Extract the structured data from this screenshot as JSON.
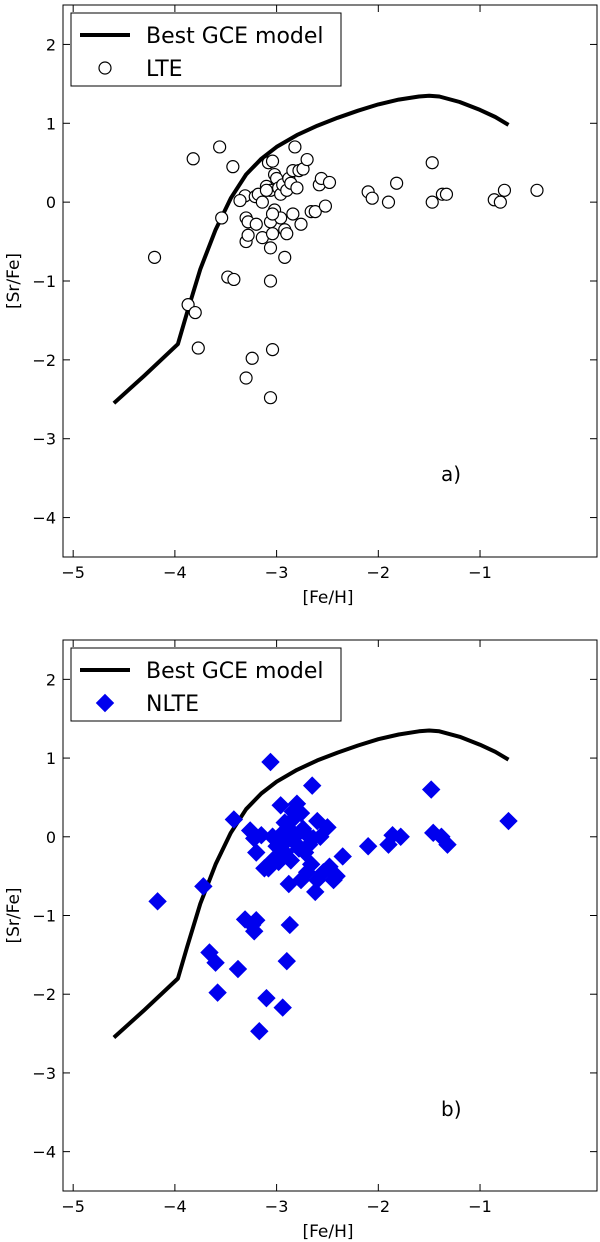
{
  "chart_data": [
    {
      "type": "scatter",
      "panel_label": "a)",
      "xlabel": "[Fe/H]",
      "ylabel": "[Sr/Fe]",
      "xlim": [
        -5.1,
        0.15
      ],
      "ylim": [
        -4.5,
        2.5
      ],
      "xticks": [
        -5,
        -4,
        -3,
        -2,
        -1
      ],
      "yticks": [
        2,
        1,
        0,
        -1,
        -2,
        -3,
        -4
      ],
      "xtick_labels": [
        "−5",
        "−4",
        "−3",
        "−2",
        "−1"
      ],
      "ytick_labels": [
        "2",
        "1",
        "0",
        "−1",
        "−2",
        "−3",
        "−4"
      ],
      "legend": {
        "position": "top-left",
        "entries": [
          "Best GCE model",
          "LTE"
        ]
      },
      "model": {
        "name": "Best GCE model",
        "color": "#000000",
        "x": [
          -4.6,
          -4.3,
          -3.97,
          -3.88,
          -3.75,
          -3.6,
          -3.45,
          -3.3,
          -3.15,
          -3.0,
          -2.8,
          -2.6,
          -2.4,
          -2.2,
          -2.0,
          -1.8,
          -1.6,
          -1.5,
          -1.4,
          -1.2,
          -1.0,
          -0.85,
          -0.72
        ],
        "y": [
          -2.55,
          -2.2,
          -1.8,
          -1.4,
          -0.85,
          -0.35,
          0.05,
          0.35,
          0.55,
          0.7,
          0.85,
          0.97,
          1.07,
          1.16,
          1.24,
          1.3,
          1.34,
          1.35,
          1.34,
          1.27,
          1.17,
          1.08,
          0.98
        ]
      },
      "series": [
        {
          "name": "LTE",
          "marker": "open-circle",
          "color": "#000000",
          "x": [
            -4.2,
            -3.82,
            -3.87,
            -3.8,
            -3.77,
            -3.43,
            -3.31,
            -3.21,
            -3.54,
            -3.48,
            -3.42,
            -3.36,
            -3.3,
            -3.28,
            -3.3,
            -3.3,
            -3.24,
            -3.18,
            -3.14,
            -3.1,
            -3.08,
            -3.06,
            -3.06,
            -3.04,
            -3.04,
            -3.02,
            -3.0,
            -2.98,
            -2.96,
            -2.94,
            -2.92,
            -2.9,
            -2.88,
            -2.86,
            -2.84,
            -2.82,
            -2.8,
            -2.78,
            -2.74,
            -2.7,
            -2.66,
            -2.62,
            -2.58,
            -2.56,
            -2.52,
            -2.48,
            -3.06,
            -3.02,
            -2.96,
            -2.9,
            -2.84,
            -2.76,
            -3.2,
            -3.14,
            -3.1,
            -3.04,
            -2.92,
            -3.56,
            -3.28,
            -3.06,
            -3.06,
            -3.04,
            -2.1,
            -2.06,
            -1.9,
            -1.82,
            -1.47,
            -1.47,
            -1.37,
            -1.33,
            -0.86,
            -0.8,
            -0.76,
            -0.44
          ],
          "y": [
            -0.7,
            0.55,
            -1.3,
            -1.4,
            -1.85,
            0.45,
            0.08,
            0.07,
            -0.2,
            -0.95,
            -0.98,
            0.02,
            -0.2,
            -0.25,
            -0.5,
            -2.23,
            -1.98,
            0.1,
            0.0,
            0.2,
            0.5,
            0.15,
            -0.25,
            0.52,
            -1.87,
            0.35,
            0.3,
            0.18,
            0.1,
            0.22,
            -0.35,
            0.15,
            0.3,
            0.24,
            0.4,
            0.7,
            0.18,
            0.4,
            0.42,
            0.54,
            -0.12,
            -0.12,
            0.22,
            0.3,
            -0.05,
            0.25,
            -1.0,
            -0.1,
            -0.2,
            -0.4,
            -0.15,
            -0.28,
            -0.28,
            -0.45,
            0.15,
            -0.15,
            -0.7,
            0.7,
            -0.42,
            -0.58,
            -2.48,
            -0.4,
            0.13,
            0.05,
            0.0,
            0.24,
            0.5,
            0.0,
            0.1,
            0.1,
            0.03,
            0.0,
            0.15,
            0.15
          ]
        }
      ]
    },
    {
      "type": "scatter",
      "panel_label": "b)",
      "xlabel": "[Fe/H]",
      "ylabel": "[Sr/Fe]",
      "xlim": [
        -5.1,
        0.15
      ],
      "ylim": [
        -4.5,
        2.5
      ],
      "xticks": [
        -5,
        -4,
        -3,
        -2,
        -1
      ],
      "yticks": [
        2,
        1,
        0,
        -1,
        -2,
        -3,
        -4
      ],
      "xtick_labels": [
        "−5",
        "−4",
        "−3",
        "−2",
        "−1"
      ],
      "ytick_labels": [
        "2",
        "1",
        "0",
        "−1",
        "−2",
        "−3",
        "−4"
      ],
      "legend": {
        "position": "top-left",
        "entries": [
          "Best GCE model",
          "NLTE"
        ]
      },
      "model": {
        "name": "Best GCE model",
        "color": "#000000",
        "x": [
          -4.6,
          -4.3,
          -3.97,
          -3.88,
          -3.75,
          -3.6,
          -3.45,
          -3.3,
          -3.15,
          -3.0,
          -2.8,
          -2.6,
          -2.4,
          -2.2,
          -2.0,
          -1.8,
          -1.6,
          -1.5,
          -1.4,
          -1.2,
          -1.0,
          -0.85,
          -0.72
        ],
        "y": [
          -2.55,
          -2.2,
          -1.8,
          -1.4,
          -0.85,
          -0.35,
          0.05,
          0.35,
          0.55,
          0.7,
          0.85,
          0.97,
          1.07,
          1.16,
          1.24,
          1.3,
          1.34,
          1.35,
          1.34,
          1.27,
          1.17,
          1.08,
          0.98
        ]
      },
      "series": [
        {
          "name": "NLTE",
          "marker": "diamond",
          "color": "#0000ee",
          "x": [
            -4.17,
            -3.72,
            -3.66,
            -3.6,
            -3.58,
            -3.38,
            -3.42,
            -3.31,
            -3.24,
            -3.22,
            -3.2,
            -3.17,
            -3.1,
            -3.06,
            -3.04,
            -2.94,
            -2.9,
            -2.87,
            -3.04,
            -3.26,
            -3.22,
            -3.2,
            -3.15,
            -3.12,
            -3.08,
            -3.04,
            -3.0,
            -2.98,
            -2.96,
            -2.94,
            -2.92,
            -2.9,
            -2.88,
            -2.86,
            -2.84,
            -2.82,
            -2.8,
            -2.78,
            -2.76,
            -2.74,
            -2.72,
            -2.7,
            -2.68,
            -2.65,
            -2.62,
            -2.6,
            -2.57,
            -2.54,
            -2.5,
            -2.48,
            -2.44,
            -2.41,
            -2.35,
            -2.96,
            -2.92,
            -2.86,
            -2.82,
            -2.8,
            -2.76,
            -2.72,
            -2.66,
            -2.64,
            -2.6,
            -2.1,
            -1.9,
            -1.86,
            -1.78,
            -1.48,
            -1.46,
            -1.38,
            -1.32,
            -0.72
          ],
          "y": [
            -0.82,
            -0.63,
            -1.47,
            -1.6,
            -1.98,
            -1.68,
            0.22,
            -1.05,
            -1.12,
            -1.2,
            -1.06,
            -2.47,
            -2.05,
            0.95,
            -0.3,
            -2.17,
            -1.58,
            -1.12,
            0.0,
            0.08,
            -0.02,
            -0.2,
            0.02,
            -0.4,
            -0.4,
            0.0,
            -0.12,
            -0.32,
            0.4,
            0.05,
            0.18,
            -0.05,
            -0.6,
            0.08,
            0.32,
            0.25,
            0.42,
            -0.15,
            0.3,
            0.1,
            0.05,
            -0.45,
            -0.1,
            0.65,
            -0.7,
            0.2,
            0.0,
            -0.45,
            0.12,
            -0.38,
            -0.55,
            -0.5,
            -0.25,
            -0.05,
            -0.2,
            -0.3,
            0.0,
            -0.1,
            -0.55,
            -0.2,
            -0.35,
            -0.02,
            -0.55,
            -0.12,
            -0.1,
            0.02,
            0.0,
            0.6,
            0.05,
            0.0,
            -0.1,
            0.2
          ]
        }
      ]
    }
  ]
}
